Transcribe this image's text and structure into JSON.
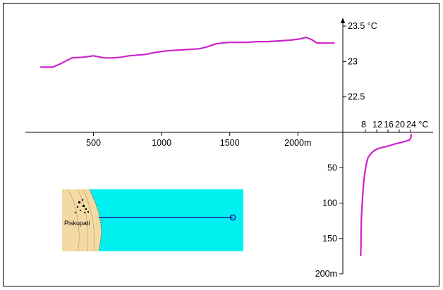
{
  "colors": {
    "series": "#cc22cc",
    "axis": "#000000",
    "sea": "#00f0f0",
    "land": "#f3d9a4",
    "transect": "#1a1aa6"
  },
  "chart_data": [
    {
      "type": "line",
      "series": [
        {
          "x": [
            110,
            160,
            200,
            260,
            340,
            420,
            500,
            580,
            640,
            700,
            760,
            820,
            880,
            960,
            1040,
            1120,
            1200,
            1280,
            1340,
            1400,
            1440,
            1500,
            1560,
            1620,
            1700,
            1780,
            1860,
            1940,
            2020,
            2060,
            2100,
            2140,
            2200,
            2270
          ],
          "y": [
            22.92,
            22.92,
            22.92,
            22.97,
            23.05,
            23.06,
            23.08,
            23.05,
            23.05,
            23.06,
            23.08,
            23.09,
            23.1,
            23.13,
            23.15,
            23.16,
            23.17,
            23.18,
            23.21,
            23.25,
            23.26,
            23.27,
            23.27,
            23.27,
            23.28,
            23.28,
            23.29,
            23.3,
            23.32,
            23.34,
            23.31,
            23.26,
            23.26,
            23.26
          ]
        }
      ],
      "x_ticks": [
        500,
        1000,
        1500,
        2000
      ],
      "x_tick_labels": [
        "500",
        "1000",
        "1500",
        "2000m"
      ],
      "y_ticks": [
        22.5,
        23,
        23.5
      ],
      "y_tick_labels": [
        "22.5",
        "23",
        "23.5 °C"
      ],
      "xlim": [
        0,
        2330
      ],
      "ylim": [
        22.0,
        23.5
      ],
      "xlabel": "",
      "ylabel": "",
      "grid": false
    },
    {
      "type": "line",
      "series": [
        {
          "x": [
            24.2,
            24.1,
            23.5,
            22.0,
            20.0,
            18.0,
            16.5,
            14.5,
            12.5,
            11.0,
            10.0,
            9.0,
            8.5,
            8.0,
            7.7,
            7.4,
            7.2,
            7.0,
            6.8,
            6.6,
            6.5,
            6.45,
            6.4,
            6.35,
            6.3
          ],
          "y": [
            2,
            8,
            11,
            13,
            15,
            17,
            19,
            21,
            23,
            26,
            30,
            35,
            42,
            52,
            60,
            70,
            80,
            92,
            105,
            120,
            135,
            150,
            165,
            172,
            175
          ]
        }
      ],
      "x_ticks": [
        8,
        12,
        16,
        20,
        24
      ],
      "x_tick_labels": [
        "8",
        "12",
        "16",
        "20",
        "24 °C"
      ],
      "y_ticks": [
        50,
        100,
        150,
        200
      ],
      "y_tick_labels": [
        "50",
        "100",
        "150",
        "200m"
      ],
      "xlim": [
        0,
        26
      ],
      "ylim": [
        0,
        200
      ],
      "xlabel": "",
      "ylabel": "",
      "grid": false
    }
  ],
  "map": {
    "place_label": "Piskupati"
  }
}
